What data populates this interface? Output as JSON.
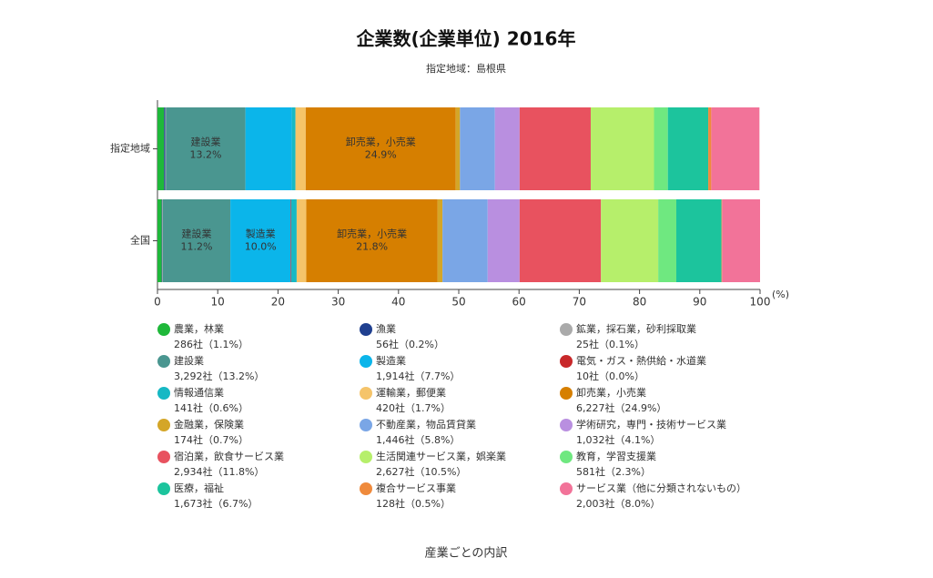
{
  "chart_data": {
    "type": "stacked-bar-horizontal",
    "title": "企業数(企業単位) 2016年",
    "subtitle": "指定地域：島根県",
    "xlabel": "(%)",
    "caption": "産業ごとの内訳",
    "categories": [
      "指定地域",
      "全国"
    ],
    "xlim": [
      0,
      100
    ],
    "xticks": [
      0,
      10,
      20,
      30,
      40,
      50,
      60,
      70,
      80,
      90,
      100
    ],
    "series": [
      {
        "name": "農業，林業",
        "color": "#1fb83a",
        "values": [
          1.1,
          0.7
        ],
        "legend_detail": "286社（1.1%）"
      },
      {
        "name": "漁業",
        "color": "#1f3f8f",
        "values": [
          0.2,
          0.1
        ],
        "legend_detail": "56社（0.2%）"
      },
      {
        "name": "鉱業，採石業，砂利採取業",
        "color": "#aaaaaa",
        "values": [
          0.1,
          0.1
        ],
        "legend_detail": "25社（0.1%）"
      },
      {
        "name": "建設業",
        "color": "#4a9690",
        "values": [
          13.2,
          11.2
        ],
        "value_labels": [
          "13.2%",
          "11.2%"
        ],
        "legend_detail": "3,292社（13.2%）"
      },
      {
        "name": "製造業",
        "color": "#0bb5ea",
        "values": [
          7.7,
          10.0
        ],
        "value_labels": [
          null,
          "10.0%"
        ],
        "legend_detail": "1,914社（7.7%）"
      },
      {
        "name": "電気・ガス・熱供給・水道業",
        "color": "#c8282a",
        "values": [
          0.0,
          0.1
        ],
        "legend_detail": "10社（0.0%）"
      },
      {
        "name": "情報通信業",
        "color": "#17b8c4",
        "values": [
          0.6,
          0.9
        ],
        "legend_detail": "141社（0.6%）"
      },
      {
        "name": "運輸業，郵便業",
        "color": "#f5c46a",
        "values": [
          1.7,
          1.6
        ],
        "legend_detail": "420社（1.7%）"
      },
      {
        "name": "卸売業，小売業",
        "color": "#d67f00",
        "values": [
          24.9,
          21.8
        ],
        "value_labels": [
          "24.9%",
          "21.8%"
        ],
        "legend_detail": "6,227社（24.9%）"
      },
      {
        "name": "金融業，保険業",
        "color": "#d4a628",
        "values": [
          0.7,
          0.8
        ],
        "legend_detail": "174社（0.7%）"
      },
      {
        "name": "不動産業，物品賃貸業",
        "color": "#7aa6e6",
        "values": [
          5.8,
          7.5
        ],
        "legend_detail": "1,446社（5.8%）"
      },
      {
        "name": "学術研究，専門・技術サービス業",
        "color": "#b98fe0",
        "values": [
          4.1,
          5.3
        ],
        "legend_detail": "1,032社（4.1%）"
      },
      {
        "name": "宿泊業，飲食サービス業",
        "color": "#e8525f",
        "values": [
          11.8,
          13.5
        ],
        "legend_detail": "2,934社（11.8%）"
      },
      {
        "name": "生活関連サービス業，娯楽業",
        "color": "#b6ef6b",
        "values": [
          10.5,
          9.5
        ],
        "legend_detail": "2,627社（10.5%）"
      },
      {
        "name": "教育，学習支援業",
        "color": "#6fe880",
        "values": [
          2.3,
          3.0
        ],
        "legend_detail": "581社（2.3%）"
      },
      {
        "name": "医療，福祉",
        "color": "#1cc49d",
        "values": [
          6.7,
          7.5
        ],
        "legend_detail": "1,673社（6.7%）"
      },
      {
        "name": "複合サービス事業",
        "color": "#ef8a3c",
        "values": [
          0.5,
          0.1
        ],
        "legend_detail": "128社（0.5%）"
      },
      {
        "name": "サービス業（他に分類されないもの）",
        "color": "#f27399",
        "values": [
          8.0,
          6.3
        ],
        "legend_detail": "2,003社（8.0%）"
      }
    ]
  }
}
